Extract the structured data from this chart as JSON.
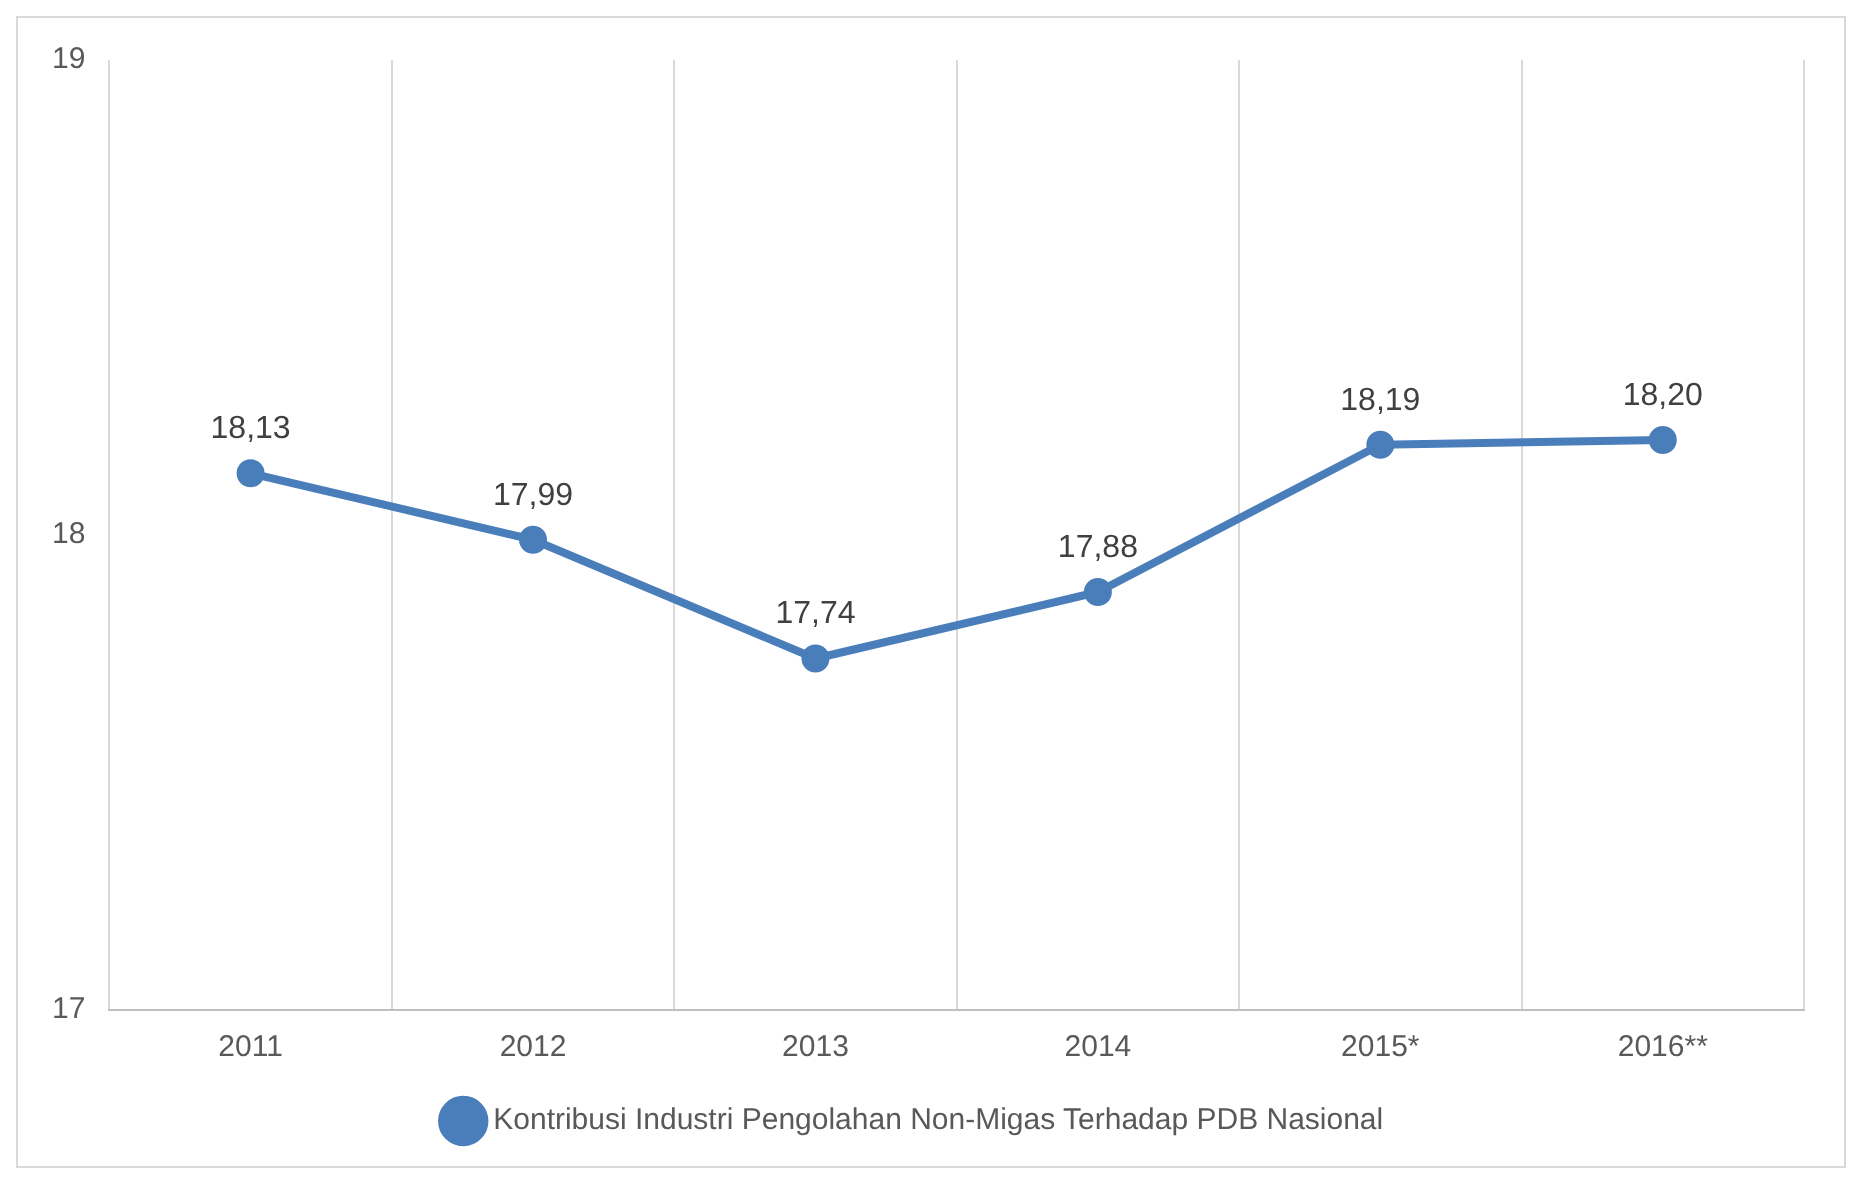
{
  "chart_data": {
    "type": "line",
    "categories": [
      "2011",
      "2012",
      "2013",
      "2014",
      "2015*",
      "2016**"
    ],
    "series": [
      {
        "name": "Kontribusi Industri Pengolahan Non-Migas Terhadap PDB Nasional",
        "color": "#4a7ebb",
        "values": [
          18.13,
          17.99,
          17.74,
          17.88,
          18.19,
          18.2
        ],
        "value_labels": [
          "18,13",
          "17,99",
          "17,74",
          "17,88",
          "18,19",
          "18,20"
        ]
      }
    ],
    "ylim": [
      17,
      19
    ],
    "yticks": [
      17,
      18,
      19
    ],
    "grid": "x",
    "legend": "bottom",
    "marker": "circle",
    "line_style": "solid"
  }
}
